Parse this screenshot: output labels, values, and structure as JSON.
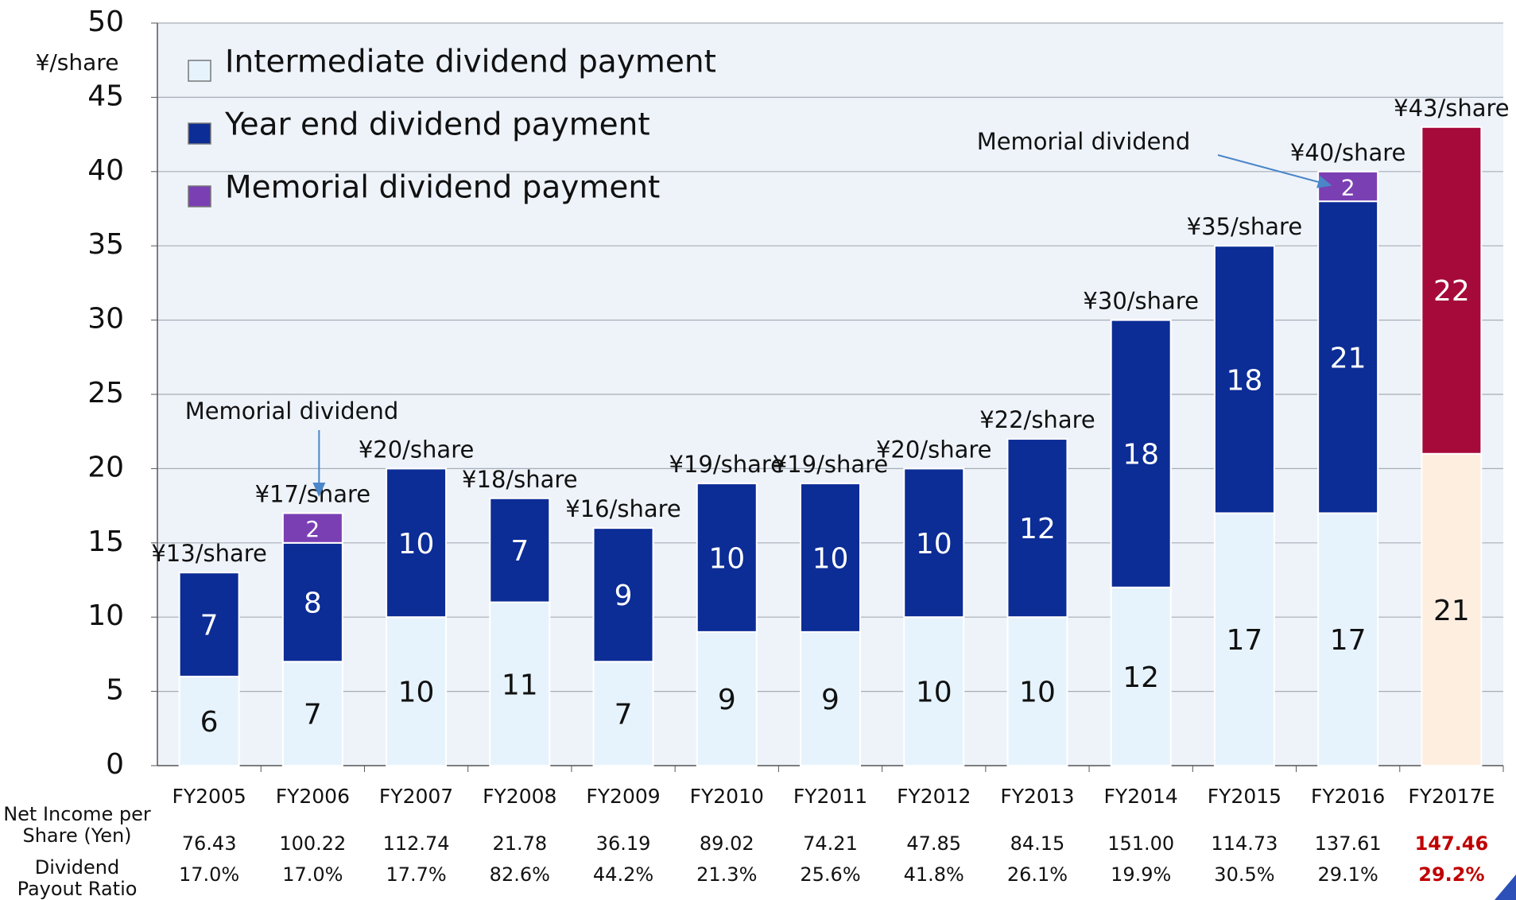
{
  "chart_data": {
    "type": "stacked_bar",
    "y_label": "¥/share",
    "categories": [
      "FY2005",
      "FY2006",
      "FY2007",
      "FY2008",
      "FY2009",
      "FY2010",
      "FY2011",
      "FY2012",
      "FY2013",
      "FY2014",
      "FY2015",
      "FY2016",
      "FY2017E"
    ],
    "series": [
      {
        "name": "Intermediate dividend payment",
        "color": "#e6f3fc",
        "label_color": "#111111",
        "colors": [
          "#e6f3fc",
          "#e6f3fc",
          "#e6f3fc",
          "#e6f3fc",
          "#e6f3fc",
          "#e6f3fc",
          "#e6f3fc",
          "#e6f3fc",
          "#e6f3fc",
          "#e6f3fc",
          "#e6f3fc",
          "#e6f3fc",
          "#fdeee0"
        ],
        "values": [
          6,
          7,
          10,
          11,
          7,
          9,
          9,
          10,
          10,
          12,
          17,
          17,
          21
        ]
      },
      {
        "name": "Year end dividend payment",
        "color": "#0c2c96",
        "label_color": "#ffffff",
        "colors": [
          "#0c2c96",
          "#0c2c96",
          "#0c2c96",
          "#0c2c96",
          "#0c2c96",
          "#0c2c96",
          "#0c2c96",
          "#0c2c96",
          "#0c2c96",
          "#0c2c96",
          "#0c2c96",
          "#0c2c96",
          "#a50a3a"
        ],
        "values": [
          7,
          8,
          10,
          7,
          9,
          10,
          10,
          10,
          12,
          18,
          18,
          21,
          22
        ]
      },
      {
        "name": "Memorial dividend payment",
        "color": "#7b3fb4",
        "label_color": "#ffffff",
        "colors": [
          "#7b3fb4",
          "#7b3fb4",
          "#7b3fb4",
          "#7b3fb4",
          "#7b3fb4",
          "#7b3fb4",
          "#7b3fb4",
          "#7b3fb4",
          "#7b3fb4",
          "#7b3fb4",
          "#7b3fb4",
          "#7b3fb4",
          "#7b3fb4"
        ],
        "values": [
          null,
          2,
          null,
          null,
          null,
          null,
          null,
          null,
          null,
          null,
          null,
          2,
          null
        ]
      }
    ],
    "total_labels": [
      "¥13/share",
      "¥17/share",
      "¥20/share",
      "¥18/share",
      "¥16/share",
      "¥19/share",
      "¥19/share",
      "¥20/share",
      "¥22/share",
      "¥30/share",
      "¥35/share",
      "¥40/share",
      "¥43/share"
    ],
    "annotations": [
      {
        "text": "Memorial dividend",
        "category": 1
      },
      {
        "text": "Memorial dividend",
        "category": 11
      }
    ],
    "ylim": [
      0,
      50
    ],
    "yticks": [
      0,
      5,
      10,
      15,
      20,
      25,
      30,
      35,
      40,
      45,
      50
    ],
    "grid": true,
    "legend": "top-left"
  },
  "table": {
    "highlight_color": "#c00000",
    "highlight_index": 12,
    "rows": [
      {
        "label": [
          "Net Income per",
          "Share (Yen)"
        ],
        "values": [
          "76.43",
          "100.22",
          "112.74",
          "21.78",
          "36.19",
          "89.02",
          "74.21",
          "47.85",
          "84.15",
          "151.00",
          "114.73",
          "137.61",
          "147.46"
        ]
      },
      {
        "label": [
          "Dividend",
          "Payout Ratio"
        ],
        "values": [
          "17.0%",
          "17.0%",
          "17.7%",
          "82.6%",
          "44.2%",
          "21.3%",
          "25.6%",
          "41.8%",
          "26.1%",
          "19.9%",
          "30.5%",
          "29.1%",
          "29.2%"
        ]
      }
    ]
  }
}
